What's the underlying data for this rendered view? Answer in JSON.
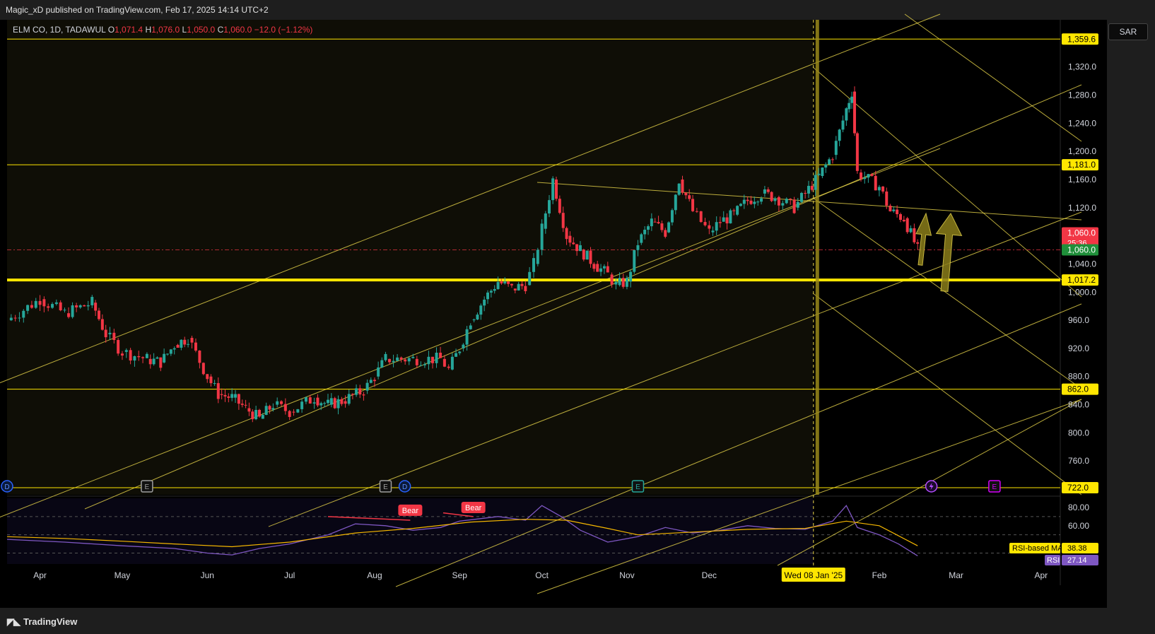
{
  "header": {
    "published": "Magic_xD published on TradingView.com, Feb 17, 2025 14:14 UTC+2"
  },
  "legend": {
    "symbol": "ELM CO, 1D, TADAWUL",
    "o_label": "O",
    "o": "1,071.4",
    "h_label": "H",
    "h": "1,076.0",
    "l_label": "L",
    "l": "1,050.0",
    "c_label": "C",
    "c": "1,060.0",
    "change": "−12.0 (−1.12%)"
  },
  "currency": "SAR",
  "footer": {
    "brand": "TradingView"
  },
  "colors": {
    "bull": "#26a69a",
    "bear": "#f23645",
    "drawing": "#e8d54a",
    "background_left": "#0f0e06",
    "rsi": "#7e57c2",
    "rsi_ma": "#f5b700",
    "bear_tag": "#f23645"
  },
  "chart_data": {
    "type": "candlestick",
    "symbol": "ELM CO",
    "interval": "1D",
    "exchange": "TADAWUL",
    "currency": "SAR",
    "last_close": 1060.0,
    "ylim": [
      712,
      1387
    ],
    "price_ticks": [
      "1,320.0",
      "1,280.0",
      "1,240.0",
      "1,200.0",
      "1,160.0",
      "1,120.0",
      "1,040.0",
      "1,000.0",
      "960.0",
      "920.0",
      "880.0",
      "840.0",
      "800.0",
      "760.0"
    ],
    "price_tick_values": [
      1320,
      1280,
      1240,
      1200,
      1160,
      1120,
      1040,
      1000,
      960,
      920,
      880,
      840,
      800,
      760
    ],
    "x_range": [
      "2024-03-20",
      "2025-04-08"
    ],
    "month_labels": [
      "Apr",
      "May",
      "Jun",
      "Jul",
      "Aug",
      "Sep",
      "Oct",
      "Nov",
      "Dec",
      "Feb",
      "Mar",
      "Apr"
    ],
    "month_dates": [
      "2024-04-01",
      "2024-05-01",
      "2024-06-01",
      "2024-07-01",
      "2024-08-01",
      "2024-09-01",
      "2024-10-01",
      "2024-11-01",
      "2024-12-01",
      "2025-02-01",
      "2025-03-01",
      "2025-04-01"
    ],
    "cursor": {
      "date": "2025-01-08",
      "label": "Wed 08 Jan '25"
    },
    "closes": [
      [
        "2024-03-20",
        960
      ],
      [
        "2024-04-01",
        990
      ],
      [
        "2024-04-10",
        970
      ],
      [
        "2024-04-20",
        985
      ],
      [
        "2024-04-25",
        940
      ],
      [
        "2024-05-01",
        915
      ],
      [
        "2024-05-10",
        905
      ],
      [
        "2024-05-15",
        900
      ],
      [
        "2024-05-20",
        925
      ],
      [
        "2024-05-25",
        935
      ],
      [
        "2024-06-01",
        880
      ],
      [
        "2024-06-05",
        855
      ],
      [
        "2024-06-10",
        850
      ],
      [
        "2024-06-15",
        835
      ],
      [
        "2024-06-20",
        820
      ],
      [
        "2024-06-25",
        840
      ],
      [
        "2024-07-01",
        830
      ],
      [
        "2024-07-10",
        850
      ],
      [
        "2024-07-15",
        840
      ],
      [
        "2024-07-20",
        845
      ],
      [
        "2024-07-28",
        860
      ],
      [
        "2024-08-01",
        880
      ],
      [
        "2024-08-05",
        905
      ],
      [
        "2024-08-15",
        905
      ],
      [
        "2024-08-25",
        905
      ],
      [
        "2024-08-28",
        890
      ],
      [
        "2024-09-01",
        920
      ],
      [
        "2024-09-05",
        960
      ],
      [
        "2024-09-10",
        990
      ],
      [
        "2024-09-15",
        1015
      ],
      [
        "2024-09-20",
        1005
      ],
      [
        "2024-09-25",
        1010
      ],
      [
        "2024-09-28",
        1040
      ],
      [
        "2024-10-01",
        1090
      ],
      [
        "2024-10-05",
        1160
      ],
      [
        "2024-10-10",
        1080
      ],
      [
        "2024-10-15",
        1060
      ],
      [
        "2024-10-20",
        1040
      ],
      [
        "2024-10-25",
        1025
      ],
      [
        "2024-10-28",
        1010
      ],
      [
        "2024-11-01",
        1015
      ],
      [
        "2024-11-05",
        1070
      ],
      [
        "2024-11-10",
        1100
      ],
      [
        "2024-11-15",
        1085
      ],
      [
        "2024-11-20",
        1160
      ],
      [
        "2024-11-25",
        1115
      ],
      [
        "2024-12-01",
        1085
      ],
      [
        "2024-12-05",
        1100
      ],
      [
        "2024-12-10",
        1110
      ],
      [
        "2024-12-15",
        1130
      ],
      [
        "2024-12-20",
        1140
      ],
      [
        "2024-12-25",
        1135
      ],
      [
        "2025-01-01",
        1120
      ],
      [
        "2025-01-05",
        1140
      ],
      [
        "2025-01-10",
        1165
      ],
      [
        "2025-01-15",
        1195
      ],
      [
        "2025-01-20",
        1260
      ],
      [
        "2025-01-22",
        1285
      ],
      [
        "2025-01-24",
        1170
      ],
      [
        "2025-02-01",
        1150
      ],
      [
        "2025-02-05",
        1115
      ],
      [
        "2025-02-10",
        1105
      ],
      [
        "2025-02-15",
        1060
      ]
    ],
    "horizontal_levels": [
      {
        "price": 1359.6,
        "label": "1,359.6"
      },
      {
        "price": 1181.0,
        "label": "1,181.0"
      },
      {
        "price": 1017.2,
        "label": "1,017.2"
      },
      {
        "price": 862.0,
        "label": "862.0"
      },
      {
        "price": 722.0,
        "label": "722.0"
      }
    ],
    "price_labels": {
      "current": "1,060.0",
      "countdown": "25:36",
      "close_line": "1,060.0"
    },
    "event_markers": [
      {
        "date": "2024-03-20",
        "type": "D"
      },
      {
        "date": "2024-05-10",
        "type": "E"
      },
      {
        "date": "2024-08-05",
        "type": "E"
      },
      {
        "date": "2024-08-12",
        "type": "D"
      },
      {
        "date": "2024-11-05",
        "type": "E"
      },
      {
        "date": "2025-02-20",
        "type": "split"
      },
      {
        "date": "2025-03-15",
        "type": "E"
      }
    ],
    "rsi": {
      "ylim": [
        18,
        90
      ],
      "ticks": [
        "80.00",
        "60.00"
      ],
      "tick_values": [
        80,
        60
      ],
      "series": [
        [
          "2024-03-20",
          45
        ],
        [
          "2024-04-10",
          42
        ],
        [
          "2024-05-01",
          38
        ],
        [
          "2024-05-20",
          35
        ],
        [
          "2024-06-01",
          30
        ],
        [
          "2024-06-10",
          28
        ],
        [
          "2024-06-20",
          35
        ],
        [
          "2024-07-01",
          40
        ],
        [
          "2024-07-15",
          50
        ],
        [
          "2024-07-25",
          62
        ],
        [
          "2024-08-05",
          60
        ],
        [
          "2024-08-15",
          55
        ],
        [
          "2024-08-25",
          58
        ],
        [
          "2024-09-01",
          65
        ],
        [
          "2024-09-15",
          70
        ],
        [
          "2024-09-25",
          66
        ],
        [
          "2024-10-01",
          82
        ],
        [
          "2024-10-08",
          70
        ],
        [
          "2024-10-15",
          55
        ],
        [
          "2024-10-25",
          42
        ],
        [
          "2024-11-05",
          48
        ],
        [
          "2024-11-15",
          58
        ],
        [
          "2024-11-25",
          52
        ],
        [
          "2024-12-05",
          55
        ],
        [
          "2024-12-15",
          60
        ],
        [
          "2024-12-25",
          57
        ],
        [
          "2025-01-05",
          56
        ],
        [
          "2025-01-15",
          65
        ],
        [
          "2025-01-20",
          82
        ],
        [
          "2025-01-24",
          58
        ],
        [
          "2025-02-01",
          50
        ],
        [
          "2025-02-08",
          40
        ],
        [
          "2025-02-15",
          27
        ]
      ],
      "ma": [
        [
          "2024-03-20",
          48
        ],
        [
          "2024-04-10",
          46
        ],
        [
          "2024-05-01",
          43
        ],
        [
          "2024-05-20",
          40
        ],
        [
          "2024-06-10",
          37
        ],
        [
          "2024-07-01",
          42
        ],
        [
          "2024-07-25",
          52
        ],
        [
          "2024-08-15",
          57
        ],
        [
          "2024-09-05",
          64
        ],
        [
          "2024-09-25",
          67
        ],
        [
          "2024-10-10",
          66
        ],
        [
          "2024-10-25",
          57
        ],
        [
          "2024-11-05",
          50
        ],
        [
          "2024-11-25",
          53
        ],
        [
          "2024-12-15",
          56
        ],
        [
          "2025-01-05",
          57
        ],
        [
          "2025-01-20",
          65
        ],
        [
          "2025-02-01",
          60
        ],
        [
          "2025-02-15",
          38
        ]
      ],
      "bear_tags": [
        {
          "date": "2024-08-14",
          "value": 70,
          "label": "Bear"
        },
        {
          "date": "2024-09-06",
          "value": 73,
          "label": "Bear"
        }
      ],
      "labels": [
        {
          "name": "RSI-based MA",
          "value": "38.38"
        },
        {
          "name": "RSI",
          "value": "27.14"
        }
      ]
    }
  }
}
